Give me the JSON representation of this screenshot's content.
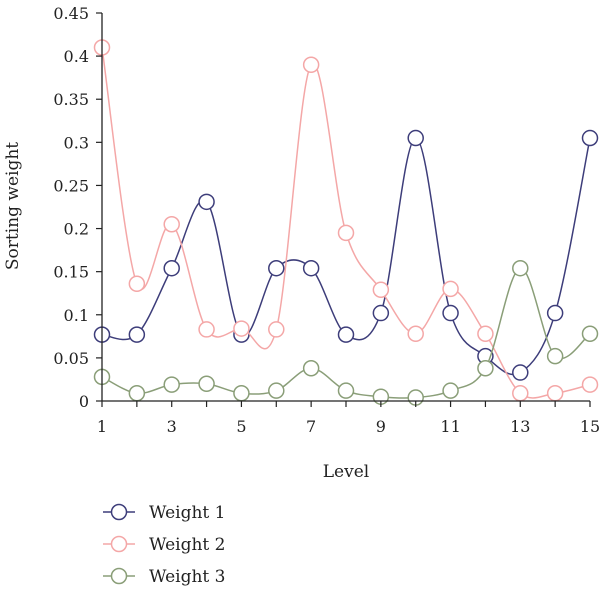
{
  "chart_data": {
    "type": "line",
    "xlabel": "Level",
    "ylabel": "Sorting weight",
    "xlim": [
      1,
      15
    ],
    "ylim": [
      0,
      0.45
    ],
    "x": [
      1,
      2,
      3,
      4,
      5,
      6,
      7,
      8,
      9,
      10,
      11,
      12,
      13,
      14,
      15
    ],
    "x_ticks": [
      "1",
      "3",
      "5",
      "7",
      "9",
      "11",
      "13",
      "15"
    ],
    "y_ticks": [
      "0",
      "0.05",
      "0.1",
      "0.15",
      "0.2",
      "0.25",
      "0.3",
      "0.35",
      "0.4",
      "0.45"
    ],
    "grid": false,
    "legend_position": "bottom-left",
    "series": [
      {
        "name": "Weight 1",
        "color": "#3d3d7a",
        "values": [
          0.077,
          0.077,
          0.154,
          0.231,
          0.077,
          0.154,
          0.154,
          0.077,
          0.102,
          0.305,
          0.102,
          0.052,
          0.033,
          0.102,
          0.305
        ]
      },
      {
        "name": "Weight 2",
        "color": "#f4a7a7",
        "values": [
          0.41,
          0.136,
          0.205,
          0.083,
          0.084,
          0.083,
          0.39,
          0.195,
          0.129,
          0.078,
          0.13,
          0.078,
          0.009,
          0.009,
          0.019
        ]
      },
      {
        "name": "Weight 3",
        "color": "#8a9e78",
        "values": [
          0.028,
          0.009,
          0.019,
          0.02,
          0.009,
          0.012,
          0.038,
          0.012,
          0.005,
          0.004,
          0.012,
          0.038,
          0.154,
          0.052,
          0.078
        ]
      }
    ]
  }
}
